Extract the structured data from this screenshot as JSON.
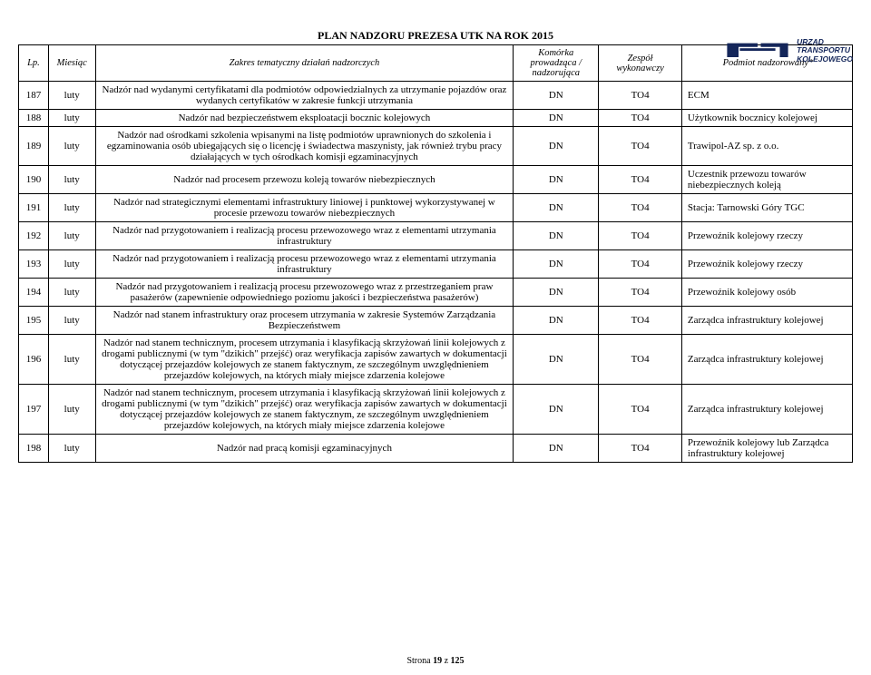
{
  "logo": {
    "line1": "URZĄD",
    "line2": "TRANSPORTU",
    "line3": "KOLEJOWEGO",
    "fill": "#14265a"
  },
  "title": "PLAN NADZORU PREZESA UTK NA ROK 2015",
  "headers": {
    "lp": "Lp.",
    "miesiac": "Miesiąc",
    "zakres": "Zakres tematyczny działań nadzorczych",
    "komorka": "Komórka prowadząca / nadzorująca",
    "zespol": "Zespół wykonawczy",
    "podmiot": "Podmiot nadzorowany*"
  },
  "rows": [
    {
      "lp": "187",
      "m": "luty",
      "zak": "Nadzór nad wydanymi certyfikatami dla podmiotów odpowiedzialnych za utrzymanie pojazdów oraz wydanych certyfikatów w zakresie funkcji utrzymania",
      "kom": "DN",
      "zes": "TO4",
      "pod": "ECM"
    },
    {
      "lp": "188",
      "m": "luty",
      "zak": "Nadzór nad bezpieczeństwem eksploatacji bocznic kolejowych",
      "kom": "DN",
      "zes": "TO4",
      "pod": "Użytkownik bocznicy kolejowej"
    },
    {
      "lp": "189",
      "m": "luty",
      "zak": "Nadzór nad ośrodkami szkolenia wpisanymi na listę podmiotów uprawnionych do szkolenia i egzaminowania osób ubiegających się o licencję i świadectwa maszynisty, jak również trybu pracy działających w tych ośrodkach komisji egzaminacyjnych",
      "kom": "DN",
      "zes": "TO4",
      "pod": "Trawipol-AZ sp. z o.o."
    },
    {
      "lp": "190",
      "m": "luty",
      "zak": "Nadzór nad procesem przewozu koleją towarów niebezpiecznych",
      "kom": "DN",
      "zes": "TO4",
      "pod": "Uczestnik przewozu towarów niebezpiecznych koleją"
    },
    {
      "lp": "191",
      "m": "luty",
      "zak": "Nadzór nad strategicznymi elementami infrastruktury liniowej i punktowej wykorzystywanej w procesie przewozu towarów niebezpiecznych",
      "kom": "DN",
      "zes": "TO4",
      "pod": "Stacja: Tarnowski Góry TGC"
    },
    {
      "lp": "192",
      "m": "luty",
      "zak": "Nadzór nad przygotowaniem i realizacją procesu przewozowego wraz z elementami utrzymania infrastruktury",
      "kom": "DN",
      "zes": "TO4",
      "pod": "Przewoźnik kolejowy rzeczy"
    },
    {
      "lp": "193",
      "m": "luty",
      "zak": "Nadzór nad przygotowaniem i realizacją procesu przewozowego wraz z elementami utrzymania infrastruktury",
      "kom": "DN",
      "zes": "TO4",
      "pod": "Przewoźnik kolejowy rzeczy"
    },
    {
      "lp": "194",
      "m": "luty",
      "zak": "Nadzór nad przygotowaniem i realizacją procesu przewozowego wraz z przestrzeganiem praw pasażerów (zapewnienie odpowiedniego poziomu jakości i bezpieczeństwa pasażerów)",
      "kom": "DN",
      "zes": "TO4",
      "pod": "Przewoźnik kolejowy osób"
    },
    {
      "lp": "195",
      "m": "luty",
      "zak": "Nadzór nad stanem infrastruktury oraz procesem utrzymania w zakresie Systemów Zarządzania Bezpieczeństwem",
      "kom": "DN",
      "zes": "TO4",
      "pod": "Zarządca infrastruktury kolejowej"
    },
    {
      "lp": "196",
      "m": "luty",
      "zak": "Nadzór nad stanem technicznym, procesem utrzymania i klasyfikacją skrzyżowań linii kolejowych z drogami publicznymi (w tym \"dzikich\" przejść) oraz weryfikacja zapisów zawartych w dokumentacji dotyczącej przejazdów kolejowych ze stanem faktycznym, ze szczególnym uwzględnieniem przejazdów kolejowych, na których miały miejsce zdarzenia kolejowe",
      "kom": "DN",
      "zes": "TO4",
      "pod": "Zarządca infrastruktury kolejowej"
    },
    {
      "lp": "197",
      "m": "luty",
      "zak": "Nadzór nad stanem technicznym, procesem utrzymania i klasyfikacją skrzyżowań linii kolejowych z drogami publicznymi (w tym \"dzikich\" przejść) oraz weryfikacja zapisów zawartych w dokumentacji dotyczącej przejazdów kolejowych ze stanem faktycznym, ze szczególnym uwzględnieniem przejazdów kolejowych, na których miały miejsce zdarzenia kolejowe",
      "kom": "DN",
      "zes": "TO4",
      "pod": "Zarządca infrastruktury kolejowej"
    },
    {
      "lp": "198",
      "m": "luty",
      "zak": "Nadzór nad pracą komisji egzaminacyjnych",
      "kom": "DN",
      "zes": "TO4",
      "pod": "Przewoźnik kolejowy lub Zarządca infrastruktury kolejowej"
    }
  ],
  "footer": {
    "prefix": "Strona ",
    "page": "19",
    "mid": " z ",
    "total": "125"
  }
}
